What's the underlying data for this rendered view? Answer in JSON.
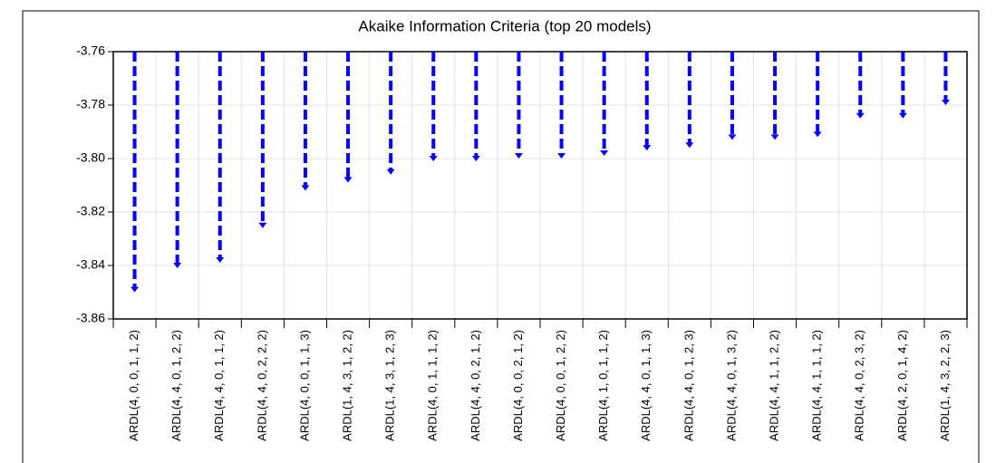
{
  "chart_data": {
    "type": "arrow-drop",
    "title": "Akaike Information Criteria (top 20 models)",
    "categories": [
      "ARDL(4, 0, 0, 1, 1, 2)",
      "ARDL(4, 4, 0, 1, 2, 2)",
      "ARDL(4, 4, 0, 1, 1, 2)",
      "ARDL(4, 4, 0, 2, 2, 2)",
      "ARDL(4, 0, 0, 1, 1, 3)",
      "ARDL(1, 4, 3, 1, 2, 2)",
      "ARDL(1, 4, 3, 1, 2, 3)",
      "ARDL(4, 0, 1, 1, 1, 2)",
      "ARDL(4, 4, 0, 2, 1, 2)",
      "ARDL(4, 0, 0, 2, 1, 2)",
      "ARDL(4, 0, 0, 1, 2, 2)",
      "ARDL(4, 1, 0, 1, 1, 2)",
      "ARDL(4, 4, 0, 1, 1, 3)",
      "ARDL(4, 4, 0, 1, 2, 3)",
      "ARDL(4, 4, 0, 1, 3, 2)",
      "ARDL(4, 4, 1, 1, 2, 2)",
      "ARDL(4, 4, 1, 1, 1, 2)",
      "ARDL(4, 4, 0, 2, 3, 2)",
      "ARDL(4, 2, 0, 1, 4, 2)",
      "ARDL(1, 4, 3, 2, 2, 3)"
    ],
    "values": [
      -3.85,
      -3.841,
      -3.839,
      -3.826,
      -3.812,
      -3.809,
      -3.806,
      -3.801,
      -3.801,
      -3.8,
      -3.8,
      -3.799,
      -3.797,
      -3.796,
      -3.793,
      -3.793,
      -3.792,
      -3.785,
      -3.785,
      -3.78
    ],
    "color": "#0000ff",
    "ylim": [
      -3.86,
      -3.76
    ],
    "yticks": [
      -3.86,
      -3.84,
      -3.82,
      {
        "value": -3.8,
        "label": "-3.80"
      },
      -3.78,
      -3.76
    ],
    "grid": true
  }
}
